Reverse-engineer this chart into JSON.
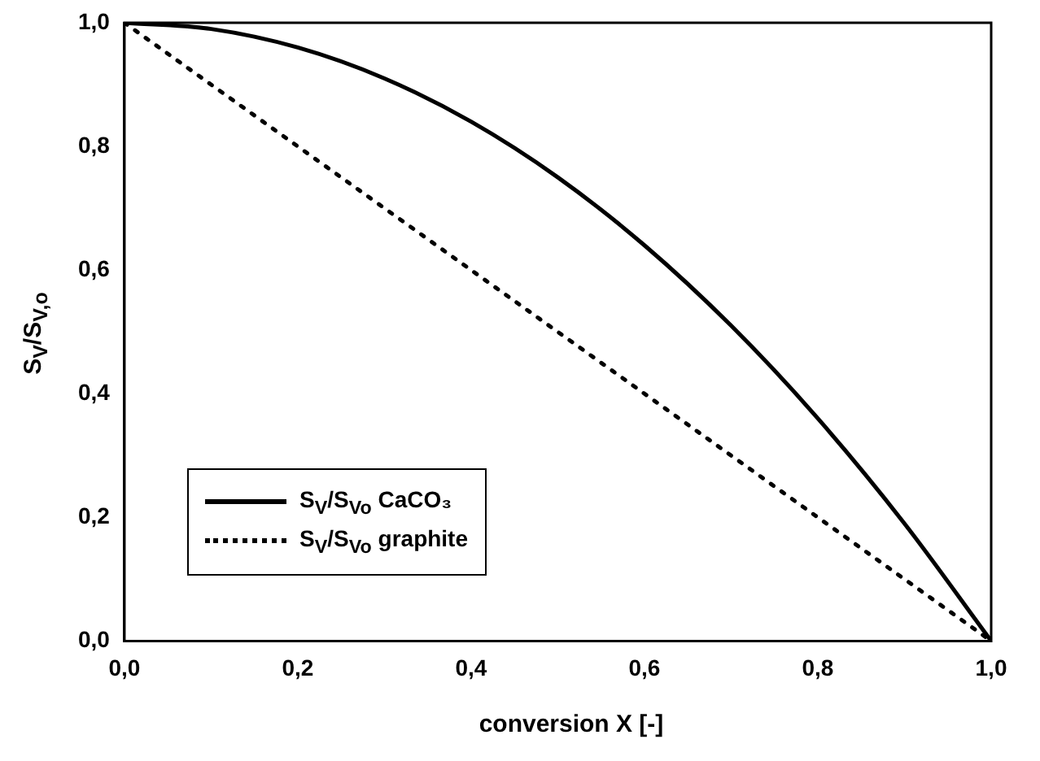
{
  "chart_data": {
    "type": "line",
    "xlabel": "conversion X [-]",
    "ylabel": "S$_{V}$/S$_{V,o}$",
    "x": [
      0,
      0.1,
      0.2,
      0.3,
      0.4,
      0.5,
      0.6,
      0.7,
      0.8,
      0.9,
      1.0
    ],
    "series": [
      {
        "name": "S$_{V}$/S$_{Vo}$ CaCO₃",
        "color": "#000000",
        "line_style": "solid",
        "values": [
          1,
          0.99,
          0.96,
          0.91,
          0.84,
          0.75,
          0.64,
          0.51,
          0.36,
          0.19,
          0
        ]
      },
      {
        "name": "S$_{V}$/S$_{Vo}$ graphite",
        "color": "#000000",
        "line_style": "dotted",
        "values": [
          1,
          0.9,
          0.8,
          0.7,
          0.6,
          0.5,
          0.4,
          0.3,
          0.2,
          0.1,
          0
        ]
      }
    ],
    "xlim": [
      0,
      1
    ],
    "xticks": [
      {
        "value": 0,
        "label": "0,0"
      },
      {
        "value": 0.2,
        "label": "0,2"
      },
      {
        "value": 0.4,
        "label": "0,4"
      },
      {
        "value": 0.6,
        "label": "0,6"
      },
      {
        "value": 0.8,
        "label": "0,8"
      },
      {
        "value": 1,
        "label": "1,0"
      }
    ],
    "ylim": [
      0,
      1
    ],
    "yticks": [
      {
        "value": 0,
        "label": "0,0"
      },
      {
        "value": 0.2,
        "label": "0,2"
      },
      {
        "value": 0.4,
        "label": "0,4"
      },
      {
        "value": 0.6,
        "label": "0,6"
      },
      {
        "value": 0.8,
        "label": "0,8"
      },
      {
        "value": 1,
        "label": "1,0"
      }
    ],
    "grid": false,
    "legend": "left",
    "marker": "none"
  }
}
